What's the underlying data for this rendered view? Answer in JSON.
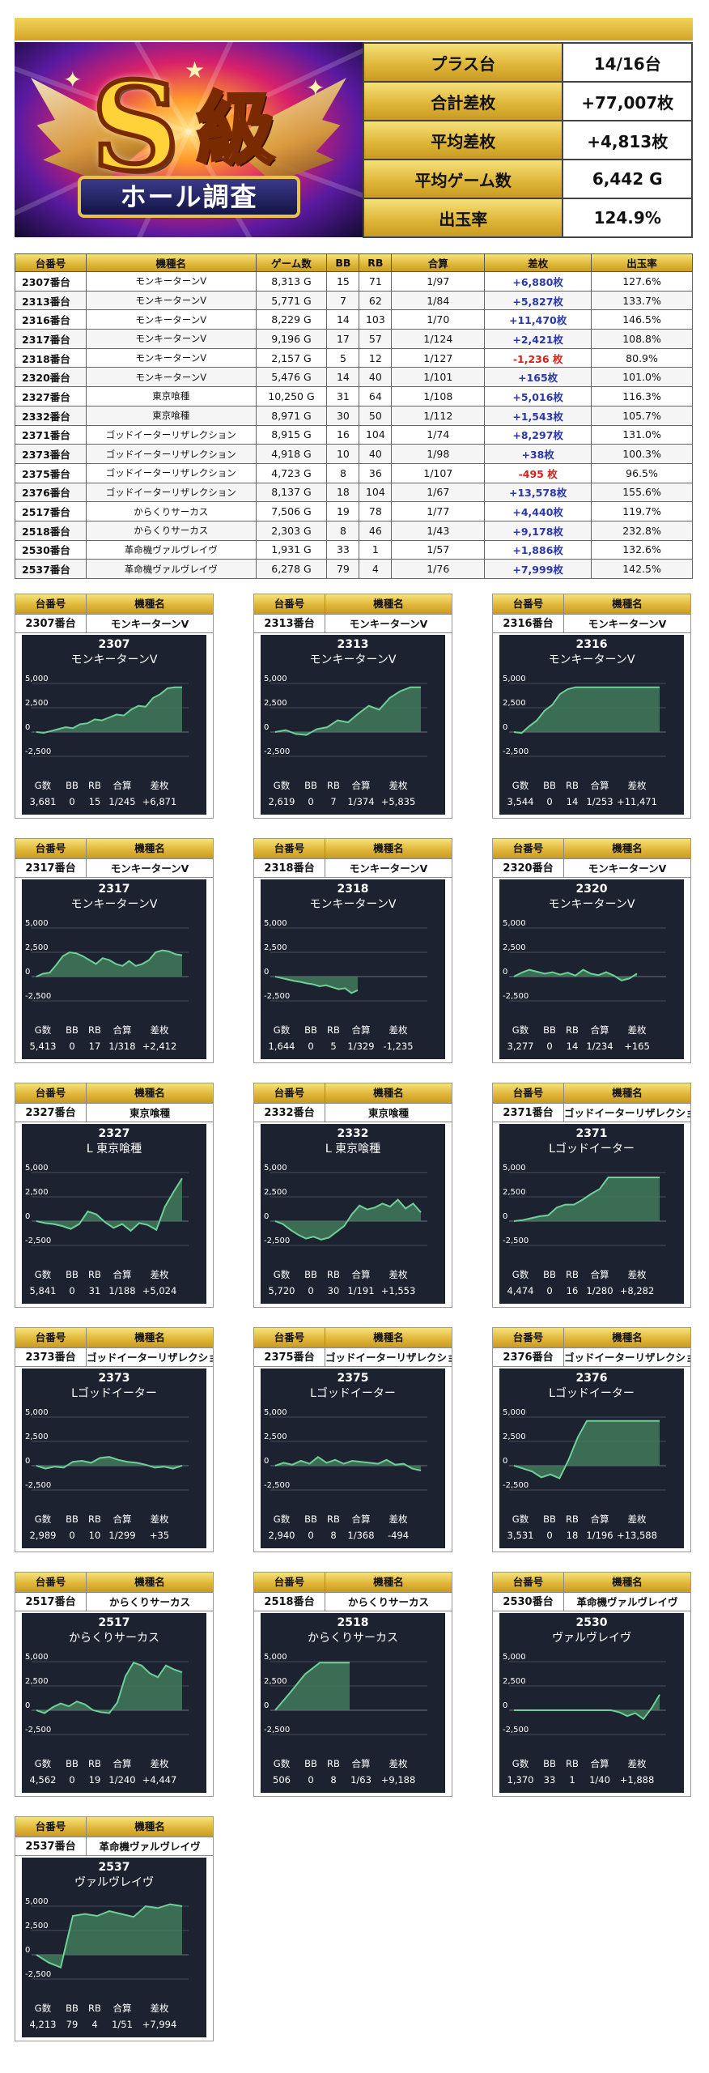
{
  "banner": {
    "big_letter": "S",
    "kyu": "級",
    "subtitle": "ホール調査"
  },
  "summary": [
    {
      "label": "プラス台",
      "value": "14/16台"
    },
    {
      "label": "合計差枚",
      "value": "+77,007枚"
    },
    {
      "label": "平均差枚",
      "value": "+4,813枚"
    },
    {
      "label": "平均ゲーム数",
      "value": "6,442 G"
    },
    {
      "label": "出玉率",
      "value": "124.9%"
    }
  ],
  "table": {
    "headers": [
      "台番号",
      "機種名",
      "ゲーム数",
      "BB",
      "RB",
      "合算",
      "差枚",
      "出玉率"
    ],
    "rows": [
      [
        "2307番台",
        "モンキーターンV",
        "8,313 G",
        "15",
        "71",
        "1/97",
        "+6,880枚",
        "127.6%"
      ],
      [
        "2313番台",
        "モンキーターンV",
        "5,771 G",
        "7",
        "62",
        "1/84",
        "+5,827枚",
        "133.7%"
      ],
      [
        "2316番台",
        "モンキーターンV",
        "8,229 G",
        "14",
        "103",
        "1/70",
        "+11,470枚",
        "146.5%"
      ],
      [
        "2317番台",
        "モンキーターンV",
        "9,196 G",
        "17",
        "57",
        "1/124",
        "+2,421枚",
        "108.8%"
      ],
      [
        "2318番台",
        "モンキーターンV",
        "2,157 G",
        "5",
        "12",
        "1/127",
        "-1,236 枚",
        "80.9%"
      ],
      [
        "2320番台",
        "モンキーターンV",
        "5,476 G",
        "14",
        "40",
        "1/101",
        "+165枚",
        "101.0%"
      ],
      [
        "2327番台",
        "東京喰種",
        "10,250 G",
        "31",
        "64",
        "1/108",
        "+5,016枚",
        "116.3%"
      ],
      [
        "2332番台",
        "東京喰種",
        "8,971 G",
        "30",
        "50",
        "1/112",
        "+1,543枚",
        "105.7%"
      ],
      [
        "2371番台",
        "ゴッドイーターリザレクション",
        "8,915 G",
        "16",
        "104",
        "1/74",
        "+8,297枚",
        "131.0%"
      ],
      [
        "2373番台",
        "ゴッドイーターリザレクション",
        "4,918 G",
        "10",
        "40",
        "1/98",
        "+38枚",
        "100.3%"
      ],
      [
        "2375番台",
        "ゴッドイーターリザレクション",
        "4,723 G",
        "8",
        "36",
        "1/107",
        "-495 枚",
        "96.5%"
      ],
      [
        "2376番台",
        "ゴッドイーターリザレクション",
        "8,137 G",
        "18",
        "104",
        "1/67",
        "+13,578枚",
        "155.6%"
      ],
      [
        "2517番台",
        "からくりサーカス",
        "7,506 G",
        "19",
        "78",
        "1/77",
        "+4,440枚",
        "119.7%"
      ],
      [
        "2518番台",
        "からくりサーカス",
        "2,303 G",
        "8",
        "46",
        "1/43",
        "+9,178枚",
        "232.8%"
      ],
      [
        "2530番台",
        "革命機ヴァルヴレイヴ",
        "1,931 G",
        "33",
        "1",
        "1/57",
        "+1,886枚",
        "132.6%"
      ],
      [
        "2537番台",
        "革命機ヴァルヴレイヴ",
        "6,278 G",
        "79",
        "4",
        "1/76",
        "+7,999枚",
        "142.5%"
      ]
    ]
  },
  "card_labels": {
    "number": "台番号",
    "model": "機種名",
    "stats": [
      "G数",
      "BB",
      "RB",
      "合算",
      "差枚"
    ]
  },
  "axis_ticks": [
    "5,000",
    "2,500",
    "0",
    "-2,500"
  ],
  "chart_data": [
    {
      "type": "area",
      "card": "2307番台",
      "model": "モンキーターンV",
      "title": "2307",
      "subtitle": "モンキーターンV",
      "ylim": [
        -2500,
        5000
      ],
      "stats": [
        "3,681",
        "0",
        "15",
        "1/245",
        "+6,871"
      ],
      "values": [
        0,
        -80,
        100,
        300,
        500,
        400,
        800,
        900,
        1300,
        1200,
        1500,
        1800,
        1700,
        2300,
        2700,
        2600,
        3500,
        3900,
        4500,
        4600,
        4600
      ]
    },
    {
      "type": "area",
      "card": "2313番台",
      "model": "モンキーターンV",
      "title": "2313",
      "subtitle": "モンキーターンV",
      "ylim": [
        -2500,
        5000
      ],
      "stats": [
        "2,619",
        "0",
        "7",
        "1/374",
        "+5,835"
      ],
      "values": [
        0,
        200,
        -200,
        -300,
        300,
        500,
        1200,
        1000,
        1900,
        2700,
        2300,
        3500,
        4200,
        4600,
        4600
      ]
    },
    {
      "type": "area",
      "card": "2316番台",
      "model": "モンキーターンV",
      "title": "2316",
      "subtitle": "モンキーターンV",
      "ylim": [
        -2500,
        5000
      ],
      "stats": [
        "3,544",
        "0",
        "14",
        "1/253",
        "+11,471"
      ],
      "values": [
        0,
        -100,
        600,
        1200,
        2200,
        2800,
        3900,
        4400,
        4600,
        4600,
        4600,
        4600,
        4600,
        4600,
        4600,
        4600,
        4600,
        4600,
        4600,
        4600
      ]
    },
    {
      "type": "area",
      "card": "2317番台",
      "model": "モンキーターンV",
      "title": "2317",
      "subtitle": "モンキーターンV",
      "ylim": [
        -2500,
        5000
      ],
      "stats": [
        "5,413",
        "0",
        "17",
        "1/318",
        "+2,412"
      ],
      "values": [
        0,
        300,
        400,
        1200,
        2100,
        2500,
        2400,
        2100,
        1700,
        1300,
        1900,
        1700,
        1300,
        1100,
        1600,
        1100,
        1300,
        1700,
        2500,
        2700,
        2600,
        2300,
        2200
      ]
    },
    {
      "type": "area",
      "card": "2318番台",
      "model": "モンキーターンV",
      "title": "2318",
      "subtitle": "モンキーターンV",
      "ylim": [
        -2500,
        5000
      ],
      "stats": [
        "1,644",
        "0",
        "5",
        "1/329",
        "-1,235"
      ],
      "values": [
        0,
        -150,
        -300,
        -450,
        -550,
        -700,
        -800,
        -1000,
        -900,
        -1100,
        -1300,
        -1200,
        -1700,
        -1400
      ]
    },
    {
      "type": "area",
      "card": "2320番台",
      "model": "モンキーターンV",
      "title": "2320",
      "subtitle": "モンキーターンV",
      "ylim": [
        -2500,
        5000
      ],
      "stats": [
        "3,277",
        "0",
        "14",
        "1/234",
        "+165"
      ],
      "values": [
        0,
        400,
        700,
        500,
        300,
        450,
        200,
        400,
        100,
        700,
        300,
        150,
        450,
        100,
        -400,
        -200,
        300
      ]
    },
    {
      "type": "area",
      "card": "2327番台",
      "model": "東京喰種",
      "title": "2327",
      "subtitle": "L 東京喰種",
      "ylim": [
        -2500,
        5000
      ],
      "stats": [
        "5,841",
        "0",
        "31",
        "1/188",
        "+5,024"
      ],
      "values": [
        0,
        -200,
        -300,
        -500,
        -800,
        -300,
        1000,
        700,
        -100,
        -700,
        -300,
        -1000,
        -200,
        -400,
        -900,
        1500,
        3000,
        4400
      ]
    },
    {
      "type": "area",
      "card": "2332番台",
      "model": "東京喰種",
      "title": "2332",
      "subtitle": "L 東京喰種",
      "ylim": [
        -2500,
        5000
      ],
      "stats": [
        "5,720",
        "0",
        "30",
        "1/191",
        "+1,553"
      ],
      "values": [
        0,
        -300,
        -900,
        -1400,
        -1800,
        -1600,
        -1900,
        -1700,
        -1100,
        -500,
        700,
        1600,
        1200,
        1400,
        1800,
        1500,
        2200,
        1300,
        1800,
        900
      ]
    },
    {
      "type": "area",
      "card": "2371番台",
      "model": "ゴッドイーターリザレクション",
      "title": "2371",
      "subtitle": "Lゴッドイーター",
      "ylim": [
        -2500,
        5000
      ],
      "stats": [
        "4,474",
        "0",
        "16",
        "1/280",
        "+8,282"
      ],
      "values": [
        0,
        100,
        300,
        500,
        600,
        1400,
        1700,
        1700,
        2200,
        2800,
        3300,
        4500,
        4500,
        4500,
        4500,
        4500,
        4500,
        4500
      ]
    },
    {
      "type": "area",
      "card": "2373番台",
      "model": "ゴッドイーターリザレクション",
      "title": "2373",
      "subtitle": "Lゴッドイーター",
      "ylim": [
        -2500,
        5000
      ],
      "stats": [
        "2,989",
        "0",
        "10",
        "1/299",
        "+35"
      ],
      "values": [
        0,
        -300,
        -100,
        -200,
        400,
        500,
        300,
        800,
        900,
        600,
        400,
        300,
        100,
        -200,
        -100,
        -300,
        0
      ]
    },
    {
      "type": "area",
      "card": "2375番台",
      "model": "ゴッドイーターリザレクション",
      "title": "2375",
      "subtitle": "Lゴッドイーター",
      "ylim": [
        -2500,
        5000
      ],
      "stats": [
        "2,940",
        "0",
        "8",
        "1/368",
        "-494"
      ],
      "values": [
        0,
        300,
        100,
        500,
        200,
        900,
        300,
        600,
        200,
        500,
        400,
        300,
        200,
        600,
        100,
        200,
        -300,
        -500
      ]
    },
    {
      "type": "area",
      "card": "2376番台",
      "model": "ゴッドイーターリザレクション",
      "title": "2376",
      "subtitle": "Lゴッドイーター",
      "ylim": [
        -2500,
        5000
      ],
      "stats": [
        "3,531",
        "0",
        "18",
        "1/196",
        "+13,588"
      ],
      "values": [
        0,
        -300,
        -600,
        -1200,
        -900,
        -1300,
        600,
        2900,
        4600,
        4600,
        4600,
        4600,
        4600,
        4600,
        4600,
        4600,
        4600
      ]
    },
    {
      "type": "area",
      "card": "2517番台",
      "model": "からくりサーカス",
      "title": "2517",
      "subtitle": "からくりサーカス",
      "ylim": [
        -2500,
        5000
      ],
      "stats": [
        "4,562",
        "0",
        "19",
        "1/240",
        "+4,447"
      ],
      "values": [
        0,
        -300,
        300,
        700,
        400,
        900,
        600,
        0,
        -200,
        -300,
        800,
        3500,
        4900,
        4600,
        3800,
        3400,
        4600,
        4200,
        3900
      ]
    },
    {
      "type": "area",
      "card": "2518番台",
      "model": "からくりサーカス",
      "title": "2518",
      "subtitle": "からくりサーカス",
      "ylim": [
        -2500,
        5000
      ],
      "stats": [
        "506",
        "0",
        "8",
        "1/63",
        "+9,188"
      ],
      "values": [
        0,
        1800,
        3700,
        4900,
        4900,
        4900
      ]
    },
    {
      "type": "area",
      "card": "2530番台",
      "model": "革命機ヴァルヴレイヴ",
      "title": "2530",
      "subtitle": "ヴァルヴレイヴ",
      "ylim": [
        -2500,
        5000
      ],
      "stats": [
        "1,370",
        "33",
        "1",
        "1/40",
        "+1,888"
      ],
      "values": [
        0,
        0,
        0,
        0,
        0,
        0,
        0,
        0,
        0,
        0,
        0,
        0,
        0,
        -200,
        -600,
        -300,
        -900,
        200,
        1600
      ]
    },
    {
      "type": "area",
      "card": "2537番台",
      "model": "革命機ヴァルヴレイヴ",
      "title": "2537",
      "subtitle": "ヴァルヴレイヴ",
      "ylim": [
        -2500,
        5000
      ],
      "stats": [
        "4,213",
        "79",
        "4",
        "1/51",
        "+7,994"
      ],
      "values": [
        0,
        -800,
        -1300,
        4000,
        4200,
        4000,
        4500,
        4200,
        3900,
        5000,
        4800,
        5200,
        5000
      ]
    }
  ],
  "colors": {
    "gold_light": "#f6e27a",
    "gold_dark": "#c99a22",
    "chart_bg": "#1d2230",
    "line": "#6fcf97",
    "fill": "#3f7a5a",
    "positive": "#2a38a8",
    "negative": "#d4201a"
  }
}
